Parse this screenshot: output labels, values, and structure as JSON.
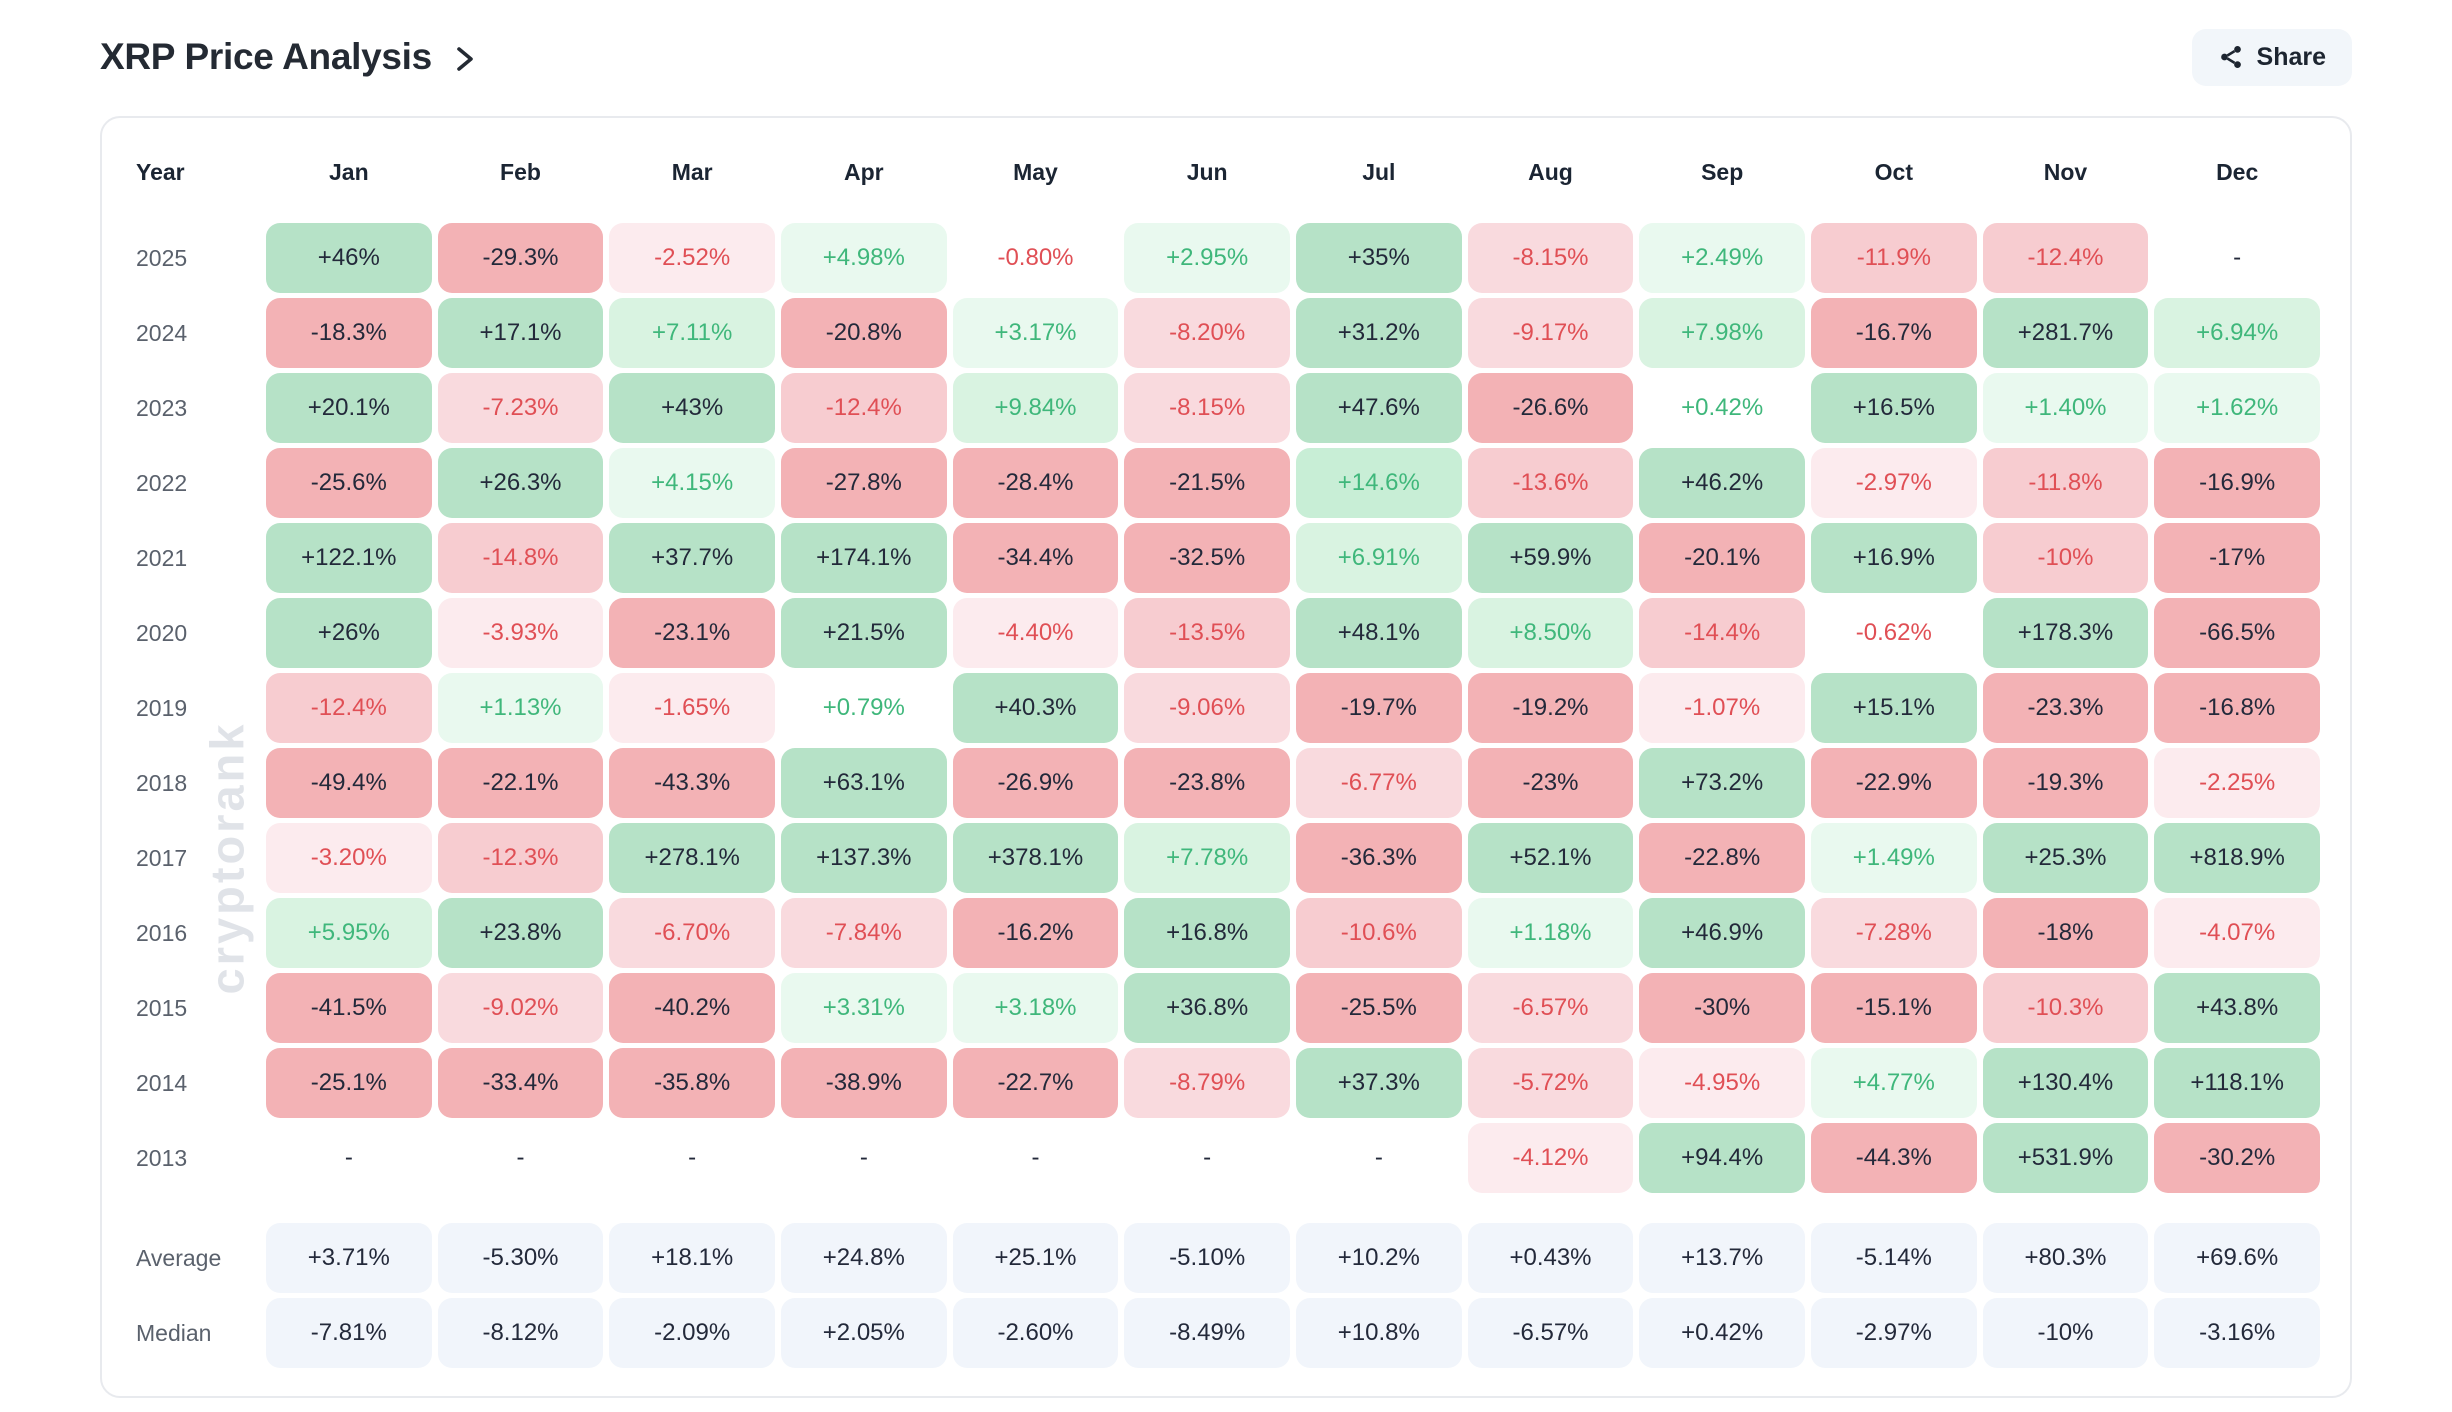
{
  "header": {
    "title": "XRP Price Analysis",
    "share_label": "Share"
  },
  "watermark": "cryptorank",
  "table": {
    "columns": [
      "Year",
      "Jan",
      "Feb",
      "Mar",
      "Apr",
      "May",
      "Jun",
      "Jul",
      "Aug",
      "Sep",
      "Oct",
      "Nov",
      "Dec"
    ],
    "rows": [
      {
        "year": "2025",
        "values": [
          "+46%",
          "-29.3%",
          "-2.52%",
          "+4.98%",
          "-0.80%",
          "+2.95%",
          "+35%",
          "-8.15%",
          "+2.49%",
          "-11.9%",
          "-12.4%",
          "-"
        ]
      },
      {
        "year": "2024",
        "values": [
          "-18.3%",
          "+17.1%",
          "+7.11%",
          "-20.8%",
          "+3.17%",
          "-8.20%",
          "+31.2%",
          "-9.17%",
          "+7.98%",
          "-16.7%",
          "+281.7%",
          "+6.94%"
        ]
      },
      {
        "year": "2023",
        "values": [
          "+20.1%",
          "-7.23%",
          "+43%",
          "-12.4%",
          "+9.84%",
          "-8.15%",
          "+47.6%",
          "-26.6%",
          "+0.42%",
          "+16.5%",
          "+1.40%",
          "+1.62%"
        ]
      },
      {
        "year": "2022",
        "values": [
          "-25.6%",
          "+26.3%",
          "+4.15%",
          "-27.8%",
          "-28.4%",
          "-21.5%",
          "+14.6%",
          "-13.6%",
          "+46.2%",
          "-2.97%",
          "-11.8%",
          "-16.9%"
        ]
      },
      {
        "year": "2021",
        "values": [
          "+122.1%",
          "-14.8%",
          "+37.7%",
          "+174.1%",
          "-34.4%",
          "-32.5%",
          "+6.91%",
          "+59.9%",
          "-20.1%",
          "+16.9%",
          "-10%",
          "-17%"
        ]
      },
      {
        "year": "2020",
        "values": [
          "+26%",
          "-3.93%",
          "-23.1%",
          "+21.5%",
          "-4.40%",
          "-13.5%",
          "+48.1%",
          "+8.50%",
          "-14.4%",
          "-0.62%",
          "+178.3%",
          "-66.5%"
        ]
      },
      {
        "year": "2019",
        "values": [
          "-12.4%",
          "+1.13%",
          "-1.65%",
          "+0.79%",
          "+40.3%",
          "-9.06%",
          "-19.7%",
          "-19.2%",
          "-1.07%",
          "+15.1%",
          "-23.3%",
          "-16.8%"
        ]
      },
      {
        "year": "2018",
        "values": [
          "-49.4%",
          "-22.1%",
          "-43.3%",
          "+63.1%",
          "-26.9%",
          "-23.8%",
          "-6.77%",
          "-23%",
          "+73.2%",
          "-22.9%",
          "-19.3%",
          "-2.25%"
        ]
      },
      {
        "year": "2017",
        "values": [
          "-3.20%",
          "-12.3%",
          "+278.1%",
          "+137.3%",
          "+378.1%",
          "+7.78%",
          "-36.3%",
          "+52.1%",
          "-22.8%",
          "+1.49%",
          "+25.3%",
          "+818.9%"
        ]
      },
      {
        "year": "2016",
        "values": [
          "+5.95%",
          "+23.8%",
          "-6.70%",
          "-7.84%",
          "-16.2%",
          "+16.8%",
          "-10.6%",
          "+1.18%",
          "+46.9%",
          "-7.28%",
          "-18%",
          "-4.07%"
        ]
      },
      {
        "year": "2015",
        "values": [
          "-41.5%",
          "-9.02%",
          "-40.2%",
          "+3.31%",
          "+3.18%",
          "+36.8%",
          "-25.5%",
          "-6.57%",
          "-30%",
          "-15.1%",
          "-10.3%",
          "+43.8%"
        ]
      },
      {
        "year": "2014",
        "values": [
          "-25.1%",
          "-33.4%",
          "-35.8%",
          "-38.9%",
          "-22.7%",
          "-8.79%",
          "+37.3%",
          "-5.72%",
          "-4.95%",
          "+4.77%",
          "+130.4%",
          "+118.1%"
        ]
      },
      {
        "year": "2013",
        "values": [
          "-",
          "-",
          "-",
          "-",
          "-",
          "-",
          "-",
          "-4.12%",
          "+94.4%",
          "-44.3%",
          "+531.9%",
          "-30.2%"
        ]
      }
    ],
    "summary": [
      {
        "label": "Average",
        "values": [
          "+3.71%",
          "-5.30%",
          "+18.1%",
          "+24.8%",
          "+25.1%",
          "-5.10%",
          "+10.2%",
          "+0.43%",
          "+13.7%",
          "-5.14%",
          "+80.3%",
          "+69.6%"
        ]
      },
      {
        "label": "Median",
        "values": [
          "-7.81%",
          "-8.12%",
          "-2.09%",
          "+2.05%",
          "-2.60%",
          "-8.49%",
          "+10.8%",
          "-6.57%",
          "+0.42%",
          "-2.97%",
          "-10%",
          "-3.16%"
        ]
      }
    ]
  },
  "chart_data": {
    "type": "heatmap",
    "title": "XRP Price Analysis",
    "x": [
      "Jan",
      "Feb",
      "Mar",
      "Apr",
      "May",
      "Jun",
      "Jul",
      "Aug",
      "Sep",
      "Oct",
      "Nov",
      "Dec"
    ],
    "y": [
      "2025",
      "2024",
      "2023",
      "2022",
      "2021",
      "2020",
      "2019",
      "2018",
      "2017",
      "2016",
      "2015",
      "2014",
      "2013"
    ],
    "values_pct": [
      [
        46,
        -29.3,
        -2.52,
        4.98,
        -0.8,
        2.95,
        35,
        -8.15,
        2.49,
        -11.9,
        -12.4,
        null
      ],
      [
        -18.3,
        17.1,
        7.11,
        -20.8,
        3.17,
        -8.2,
        31.2,
        -9.17,
        7.98,
        -16.7,
        281.7,
        6.94
      ],
      [
        20.1,
        -7.23,
        43,
        -12.4,
        9.84,
        -8.15,
        47.6,
        -26.6,
        0.42,
        16.5,
        1.4,
        1.62
      ],
      [
        -25.6,
        26.3,
        4.15,
        -27.8,
        -28.4,
        -21.5,
        14.6,
        -13.6,
        46.2,
        -2.97,
        -11.8,
        -16.9
      ],
      [
        122.1,
        -14.8,
        37.7,
        174.1,
        -34.4,
        -32.5,
        6.91,
        59.9,
        -20.1,
        16.9,
        -10,
        -17
      ],
      [
        26,
        -3.93,
        -23.1,
        21.5,
        -4.4,
        -13.5,
        48.1,
        8.5,
        -14.4,
        -0.62,
        178.3,
        -66.5
      ],
      [
        -12.4,
        1.13,
        -1.65,
        0.79,
        40.3,
        -9.06,
        -19.7,
        -19.2,
        -1.07,
        15.1,
        -23.3,
        -16.8
      ],
      [
        -49.4,
        -22.1,
        -43.3,
        63.1,
        -26.9,
        -23.8,
        -6.77,
        -23,
        73.2,
        -22.9,
        -19.3,
        -2.25
      ],
      [
        -3.2,
        -12.3,
        278.1,
        137.3,
        378.1,
        7.78,
        -36.3,
        52.1,
        -22.8,
        1.49,
        25.3,
        818.9
      ],
      [
        5.95,
        23.8,
        -6.7,
        -7.84,
        -16.2,
        16.8,
        -10.6,
        1.18,
        46.9,
        -7.28,
        -18,
        -4.07
      ],
      [
        -41.5,
        -9.02,
        -40.2,
        3.31,
        3.18,
        36.8,
        -25.5,
        -6.57,
        -30,
        -15.1,
        -10.3,
        43.8
      ],
      [
        -25.1,
        -33.4,
        -35.8,
        -38.9,
        -22.7,
        -8.79,
        37.3,
        -5.72,
        -4.95,
        4.77,
        130.4,
        118.1
      ],
      [
        null,
        null,
        null,
        null,
        null,
        null,
        null,
        -4.12,
        94.4,
        -44.3,
        531.9,
        -30.2
      ]
    ],
    "summary": {
      "Average": [
        3.71,
        -5.3,
        18.1,
        24.8,
        25.1,
        -5.1,
        10.2,
        0.43,
        13.7,
        -5.14,
        80.3,
        69.6
      ],
      "Median": [
        -7.81,
        -8.12,
        -2.09,
        2.05,
        -2.6,
        -8.49,
        10.8,
        -6.57,
        0.42,
        -2.97,
        -10,
        -3.16
      ]
    },
    "color_rule": "green = positive, red = negative; background intensity scales with |value|; dark text when |value| >= 15%, white background when |value| < 1%"
  },
  "colors": {
    "pos_text": "#3fb77b",
    "neg_text": "#e04f55",
    "dark_text": "#23293a",
    "pos_bg_1": "#e9f9ef",
    "pos_bg_2": "#d9f3e1",
    "pos_bg_3": "#c8eed6",
    "pos_bg_4": "#b6e2c7",
    "neg_bg_1": "#fcebee",
    "neg_bg_2": "#f9dade",
    "neg_bg_3": "#f7ccd0",
    "neg_bg_4": "#f3b2b5",
    "summary_bg": "#f1f5fb",
    "card_border": "#e8eaee",
    "year_text": "#5a616c",
    "header_text": "#1b2533",
    "watermark": "#e0e3e8",
    "share_bg": "#f2f6fa"
  }
}
